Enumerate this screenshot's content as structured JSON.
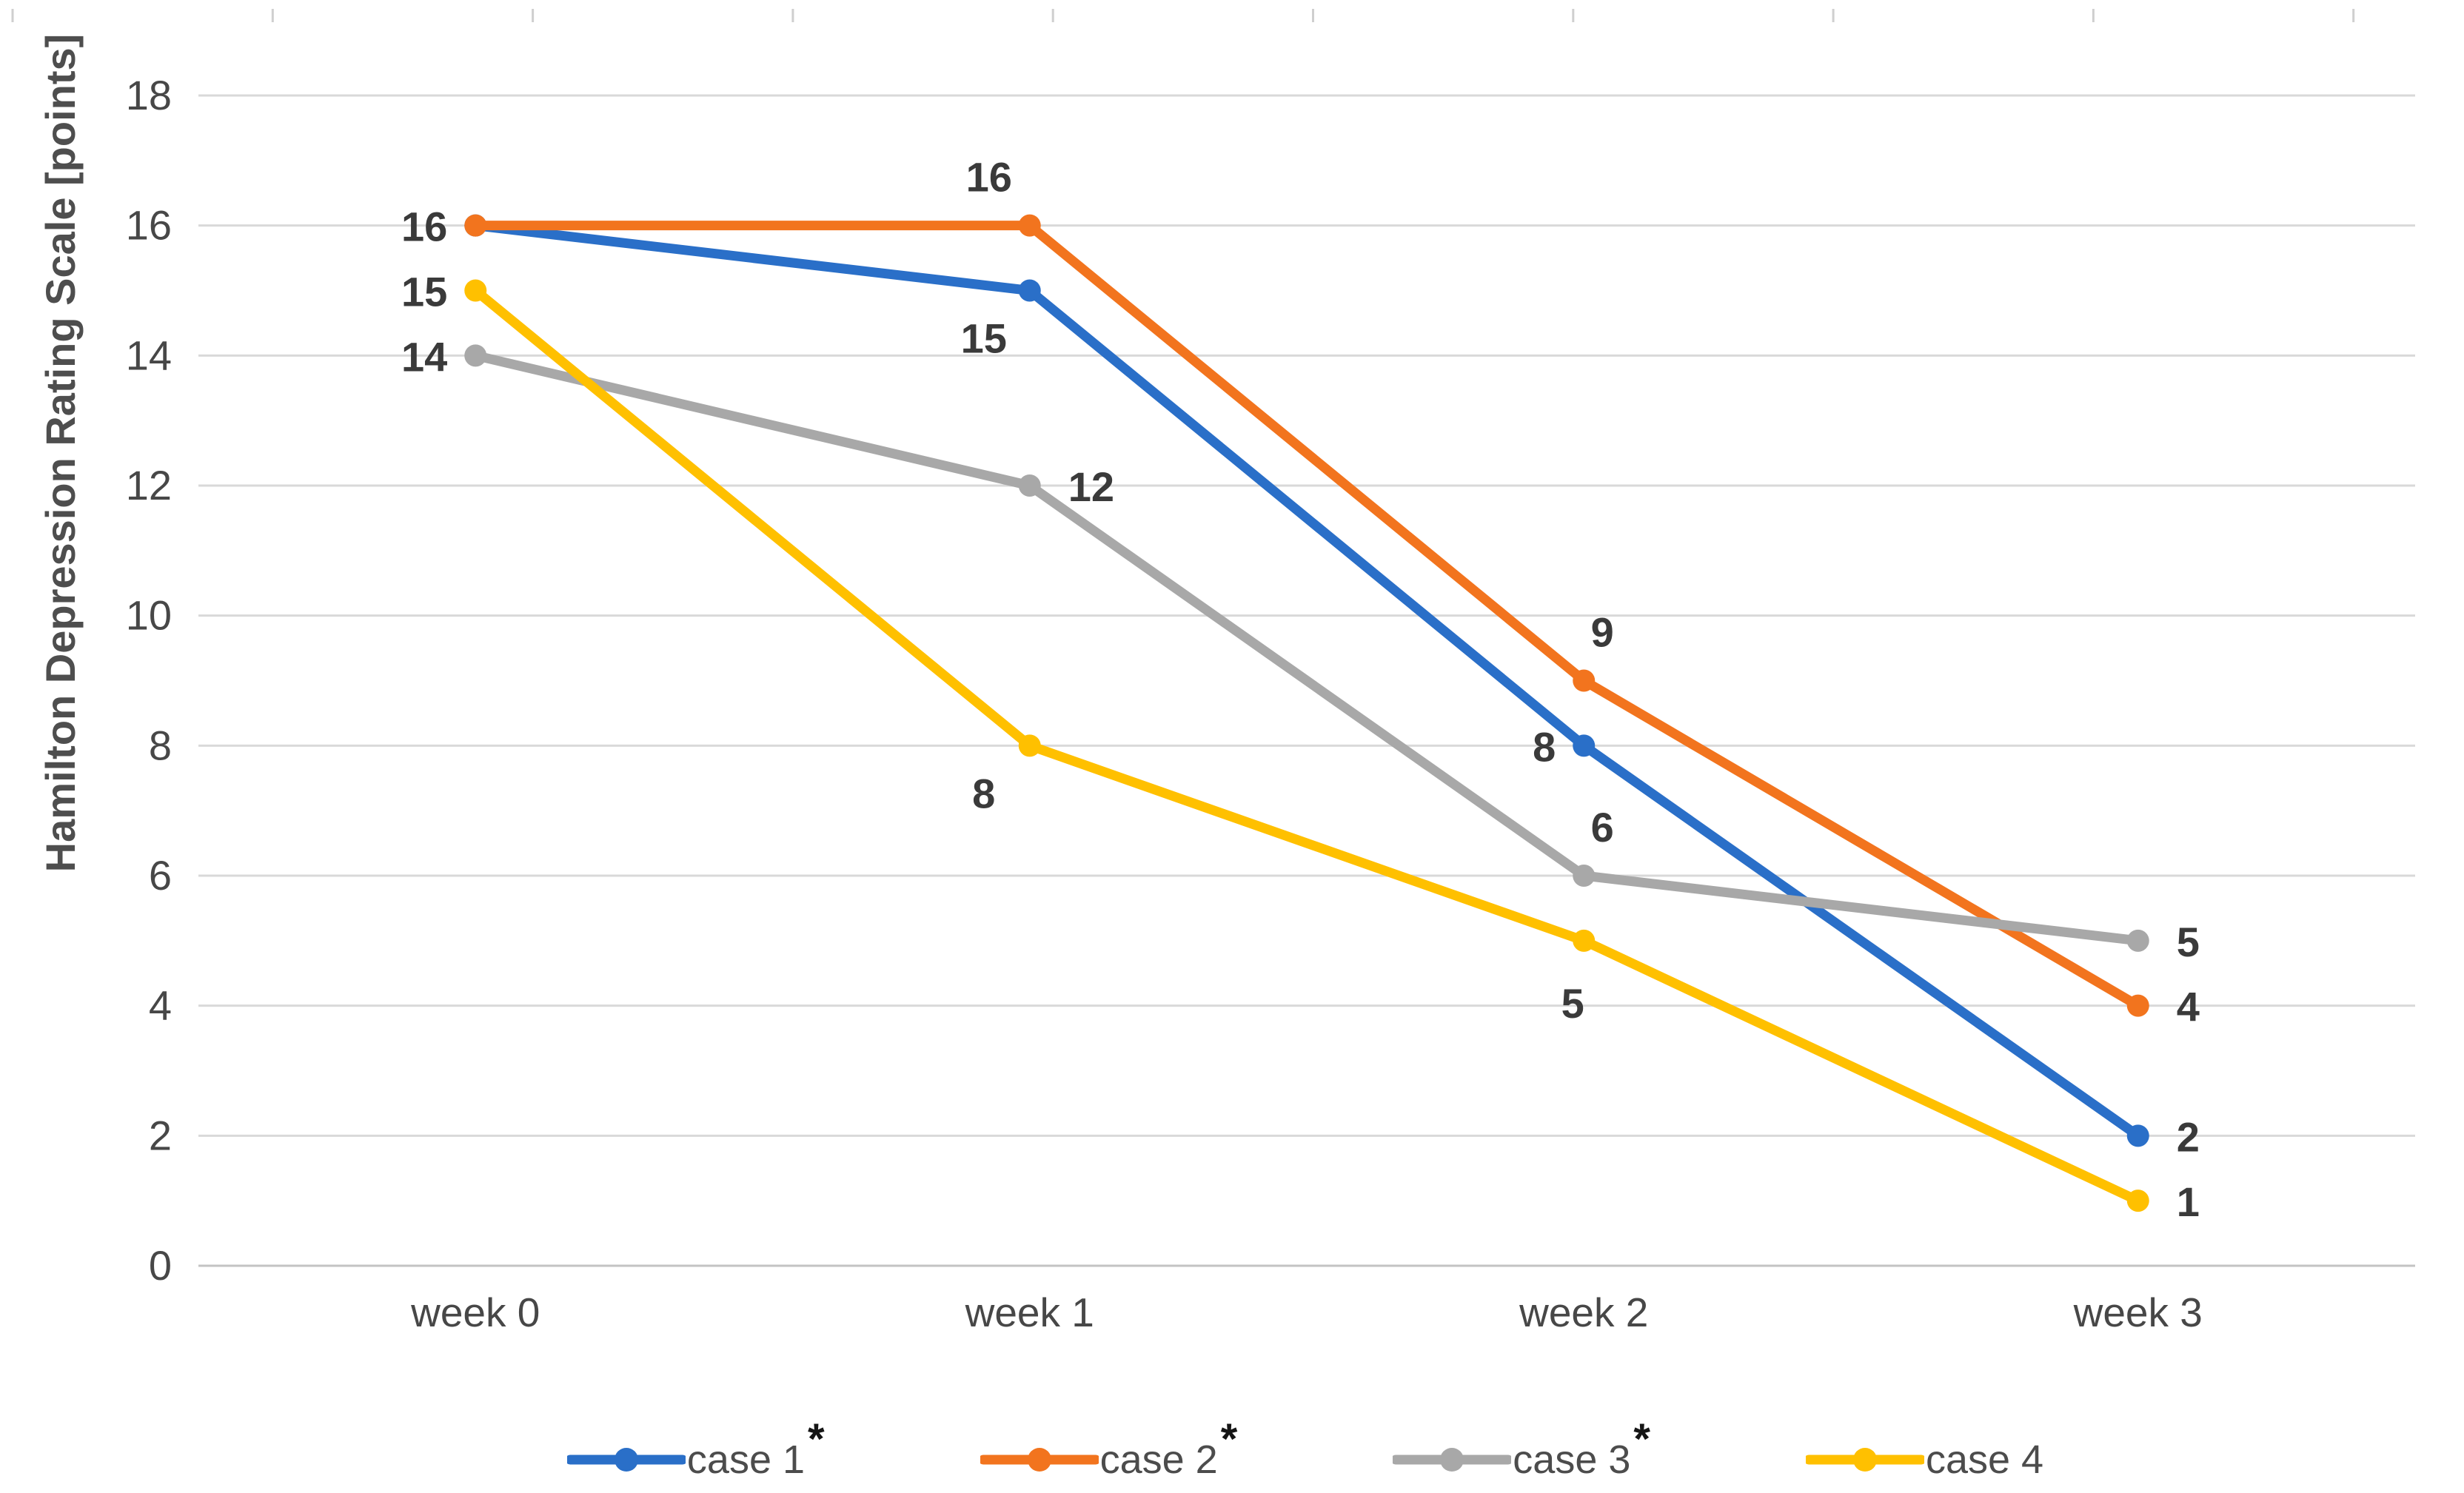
{
  "chart_data": {
    "type": "line",
    "title": "",
    "ylabel": "Hamilton Depression Rating Scale [points]",
    "xlabel": "",
    "categories": [
      "week 0",
      "week 1",
      "week 2",
      "week 3"
    ],
    "ylim": [
      0,
      18
    ],
    "y_ticks": [
      0,
      2,
      4,
      6,
      8,
      10,
      12,
      14,
      16,
      18
    ],
    "grid": "horizontal",
    "legend_position": "bottom",
    "series": [
      {
        "name": "case 1",
        "significance": "*",
        "color": "#2A6FC8",
        "values": [
          16,
          15,
          8,
          2
        ],
        "label_pos": [
          null,
          "below-left",
          "left",
          "right"
        ]
      },
      {
        "name": "case 2",
        "significance": "*",
        "color": "#F2741E",
        "values": [
          16,
          16,
          9,
          4
        ],
        "label_pos": [
          "left",
          "above",
          "above-right",
          "right"
        ]
      },
      {
        "name": "case 3",
        "significance": "*",
        "color": "#A8A8A8",
        "values": [
          14,
          12,
          6,
          5
        ],
        "label_pos": [
          "left",
          "right",
          "above-right",
          "right"
        ]
      },
      {
        "name": "case 4",
        "significance": "",
        "color": "#FFC000",
        "values": [
          15,
          8,
          5,
          1
        ],
        "label_pos": [
          "left",
          "below-left",
          "below",
          "right"
        ]
      }
    ]
  },
  "style": {
    "gridline_color": "#D9D9D9",
    "baseline_color": "#C3C3C3",
    "artifact_tick_color": "#CFCFCF",
    "axis_text_color": "#474747",
    "data_label_color": "#3A3A3A"
  },
  "decor": {
    "top_edge_tick_count": 10
  }
}
